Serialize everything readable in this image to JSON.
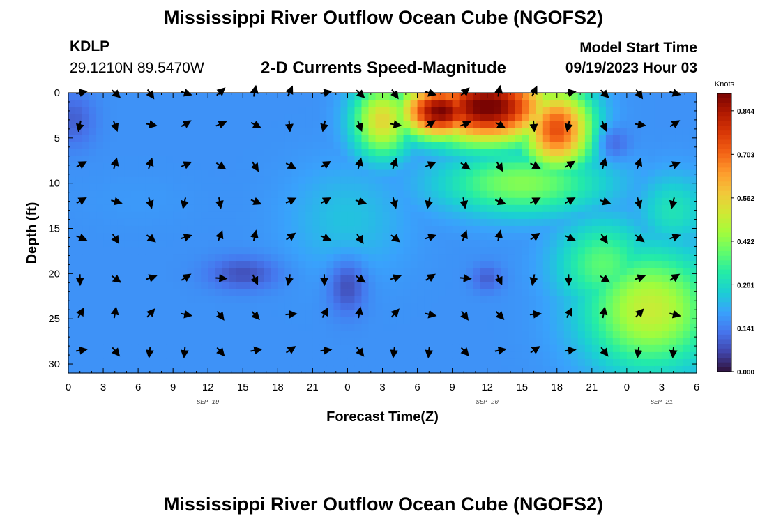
{
  "header": {
    "title": "Mississippi River Outflow Ocean Cube (NGOFS2)",
    "title_repeat": "Mississippi River Outflow Ocean Cube (NGOFS2)",
    "station_id": "KDLP",
    "station_coords": "29.1210N  89.5470W",
    "subtitle": "2-D Currents Speed-Magnitude",
    "model_label": "Model Start Time",
    "model_time": "09/19/2023 Hour 03"
  },
  "chart_data": {
    "type": "heatmap",
    "xlabel": "Forecast Time(Z)",
    "ylabel": "Depth (ft)",
    "x_tick_labels": [
      "0",
      "3",
      "6",
      "9",
      "12",
      "15",
      "18",
      "21",
      "0",
      "3",
      "6",
      "9",
      "12",
      "15",
      "18",
      "21",
      "0",
      "3",
      "6"
    ],
    "date_labels": [
      {
        "text": "SEP 19",
        "tick_index": 4
      },
      {
        "text": "SEP 20",
        "tick_index": 12
      },
      {
        "text": "SEP 21",
        "tick_index": 17
      }
    ],
    "y_ticks": [
      0,
      5,
      10,
      15,
      20,
      25,
      30
    ],
    "xlim": [
      0,
      54
    ],
    "ylim": [
      0,
      31
    ],
    "y_inverted": true,
    "colorbar": {
      "unit": "Knots",
      "ticks": [
        "0.844",
        "0.703",
        "0.562",
        "0.422",
        "0.281",
        "0.141",
        "0.000"
      ],
      "tick_values": [
        0.844,
        0.703,
        0.562,
        0.422,
        0.281,
        0.141,
        0.0
      ],
      "max": 0.9,
      "stops": [
        "#30123b",
        "#4145ab",
        "#4675ed",
        "#39a2fc",
        "#1bcfd4",
        "#24eca6",
        "#61fc6c",
        "#a4fc3b",
        "#d1e834",
        "#f3c63a",
        "#fe9b2d",
        "#f36315",
        "#d93806",
        "#b11901",
        "#7a0402"
      ]
    },
    "grid_hours": [
      0,
      3,
      6,
      9,
      12,
      15,
      18,
      21,
      24,
      27,
      30,
      33,
      36,
      39,
      42,
      45,
      48,
      51
    ],
    "grid_depths": [
      0,
      3.5,
      8,
      12,
      16,
      20.5,
      24.5,
      28.5
    ],
    "speed_hotspots": [
      {
        "t": 36,
        "d": 1.5,
        "v": 0.92,
        "st": 5.5,
        "sd": 4.0
      },
      {
        "t": 32,
        "d": 2,
        "v": 0.9,
        "st": 3.5,
        "sd": 3.0
      },
      {
        "t": 42,
        "d": 4,
        "v": 0.74,
        "st": 3.0,
        "sd": 4.5
      },
      {
        "t": 27,
        "d": 3,
        "v": 0.55,
        "st": 2.5,
        "sd": 4.0
      },
      {
        "t": 39,
        "d": 10,
        "v": 0.42,
        "st": 7.0,
        "sd": 3.5
      },
      {
        "t": 50,
        "d": 24,
        "v": 0.5,
        "st": 5.5,
        "sd": 6.5
      },
      {
        "t": 46,
        "d": 19,
        "v": 0.38,
        "st": 4.0,
        "sd": 5.0
      },
      {
        "t": 52,
        "d": 13,
        "v": 0.3,
        "st": 3.0,
        "sd": 4.0
      },
      {
        "t": 24,
        "d": 14,
        "v": 0.24,
        "st": 5.0,
        "sd": 6.0
      },
      {
        "t": 6,
        "d": 12,
        "v": 0.18,
        "st": 5.0,
        "sd": 3.0
      }
    ],
    "speed_lows": [
      {
        "t": 0.5,
        "d": 3,
        "v": 0.1,
        "st": 1.8,
        "sd": 3.0
      },
      {
        "t": 47,
        "d": 5.5,
        "v": 0.12,
        "st": 1.3,
        "sd": 1.8
      },
      {
        "t": 15,
        "d": 20,
        "v": 0.08,
        "st": 3.0,
        "sd": 1.8
      },
      {
        "t": 24,
        "d": 21.5,
        "v": 0.08,
        "st": 1.6,
        "sd": 3.0
      },
      {
        "t": 36,
        "d": 20.5,
        "v": 0.1,
        "st": 1.3,
        "sd": 1.5
      }
    ],
    "speed_base": 0.17
  }
}
